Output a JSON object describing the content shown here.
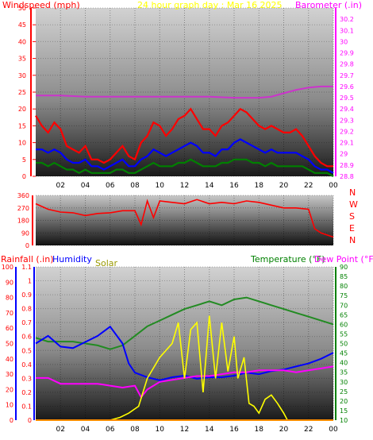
{
  "header": {
    "title": "24 hour graph day : Mar 16 2025",
    "left_label": "Windspeed (mph)",
    "right_label": "Barometer (.in)",
    "direction_label_letters": [
      "N",
      "W",
      "S",
      "E",
      "N"
    ]
  },
  "time_ticks": [
    "02",
    "04",
    "06",
    "08",
    "10",
    "12",
    "14",
    "16",
    "18",
    "20",
    "22",
    "00"
  ],
  "labels": {
    "rainfall": "Rainfall (.in)",
    "humidity": "Humidity",
    "solar": "Solar",
    "temperature": "Temperature (°F)",
    "dew_point": "Dew Point (°F)"
  },
  "colors": {
    "title": "#ffff00",
    "wind_label": "#ff0000",
    "baro_label": "#ff00ff",
    "wind_max": "#ff0000",
    "wind_avg": "#0000ff",
    "wind_min": "#008000",
    "barometer": "#cc33cc",
    "direction": "#ff0000",
    "rain_axis": "#0000ff",
    "humidity_axis": "#ff0000",
    "humidity_line": "#0000ff",
    "solar": "#ffff00",
    "solar_label": "#999900",
    "temperature": "#228b22",
    "temperature_label": "#008000",
    "dewpoint": "#ff00ff",
    "rain": "#ff8c00",
    "temp_axis": "#008000"
  },
  "chart_data": [
    {
      "type": "line",
      "title": "24 hour graph day : Mar 16 2025",
      "xlabel": "",
      "ylabel": "Windspeed (mph)",
      "y2label": "Barometer (.in)",
      "x_ticks": [
        "02",
        "04",
        "06",
        "08",
        "10",
        "12",
        "14",
        "16",
        "18",
        "20",
        "22",
        "00"
      ],
      "x_range_hours": [
        0,
        24
      ],
      "ylim": [
        0,
        50
      ],
      "y_ticks": [
        0,
        5,
        10,
        15,
        20,
        25,
        30,
        35,
        40,
        45,
        50
      ],
      "y2lim": [
        28.8,
        30.3
      ],
      "y2_ticks": [
        28.8,
        28.9,
        29.0,
        29.1,
        29.2,
        29.3,
        29.4,
        29.5,
        29.6,
        29.7,
        29.8,
        29.9,
        30.0,
        30.1,
        30.2
      ],
      "y2_tick_labels": [
        "28.8",
        "28.9",
        "29",
        "29.1",
        "29.2",
        "29.3",
        "29.4",
        "29.5",
        "29.6",
        "29.7",
        "29.8",
        "29.9",
        "30",
        "30.1",
        "30.2"
      ],
      "series": [
        {
          "name": "Windspeed max",
          "axis": "left",
          "x": [
            0,
            0.5,
            1,
            1.5,
            2,
            2.5,
            3,
            3.5,
            4,
            4.5,
            5,
            5.5,
            6,
            6.5,
            7,
            7.5,
            8,
            8.5,
            9,
            9.5,
            10,
            10.5,
            11,
            11.5,
            12,
            12.5,
            13,
            13.5,
            14,
            14.5,
            15,
            15.5,
            16,
            16.5,
            17,
            17.5,
            18,
            18.5,
            19,
            19.5,
            20,
            20.5,
            21,
            21.5,
            22,
            22.5,
            23,
            23.5,
            24
          ],
          "values": [
            18,
            15,
            13,
            16,
            14,
            9,
            8,
            7,
            9,
            5,
            5,
            4,
            5,
            7,
            9,
            6,
            5,
            10,
            12,
            16,
            15,
            12,
            14,
            17,
            18,
            20,
            17,
            14,
            14,
            12,
            15,
            16,
            18,
            20,
            19,
            17,
            15,
            14,
            15,
            14,
            13,
            13,
            14,
            12,
            9,
            6,
            4,
            3,
            3
          ]
        },
        {
          "name": "Windspeed avg",
          "axis": "left",
          "x": [
            0,
            0.5,
            1,
            1.5,
            2,
            2.5,
            3,
            3.5,
            4,
            4.5,
            5,
            5.5,
            6,
            6.5,
            7,
            7.5,
            8,
            8.5,
            9,
            9.5,
            10,
            10.5,
            11,
            11.5,
            12,
            12.5,
            13,
            13.5,
            14,
            14.5,
            15,
            15.5,
            16,
            16.5,
            17,
            17.5,
            18,
            18.5,
            19,
            19.5,
            20,
            20.5,
            21,
            21.5,
            22,
            22.5,
            23,
            23.5,
            24
          ],
          "values": [
            8,
            8,
            7,
            8,
            7,
            5,
            4,
            4,
            5,
            3,
            3,
            2,
            3,
            4,
            5,
            3,
            3,
            5,
            6,
            8,
            7,
            6,
            7,
            8,
            9,
            10,
            9,
            7,
            7,
            6,
            8,
            8,
            10,
            11,
            10,
            9,
            8,
            7,
            8,
            7,
            7,
            7,
            7,
            6,
            5,
            3,
            2,
            2,
            1
          ]
        },
        {
          "name": "Windspeed min",
          "axis": "left",
          "x": [
            0,
            0.5,
            1,
            1.5,
            2,
            2.5,
            3,
            3.5,
            4,
            4.5,
            5,
            5.5,
            6,
            6.5,
            7,
            7.5,
            8,
            8.5,
            9,
            9.5,
            10,
            10.5,
            11,
            11.5,
            12,
            12.5,
            13,
            13.5,
            14,
            14.5,
            15,
            15.5,
            16,
            16.5,
            17,
            17.5,
            18,
            18.5,
            19,
            19.5,
            20,
            20.5,
            21,
            21.5,
            22,
            22.5,
            23,
            23.5,
            24
          ],
          "values": [
            4,
            4,
            3,
            4,
            3,
            2,
            2,
            1,
            2,
            1,
            1,
            1,
            1,
            2,
            2,
            1,
            1,
            2,
            3,
            4,
            3,
            3,
            3,
            4,
            4,
            5,
            4,
            3,
            3,
            3,
            4,
            4,
            5,
            5,
            5,
            4,
            4,
            3,
            4,
            3,
            3,
            3,
            3,
            3,
            2,
            1,
            1,
            1,
            0
          ]
        },
        {
          "name": "Barometer",
          "axis": "right",
          "x": [
            0,
            2,
            4,
            6,
            8,
            10,
            12,
            14,
            16,
            18,
            19,
            20,
            21,
            22,
            23,
            24
          ],
          "values": [
            29.52,
            29.52,
            29.51,
            29.51,
            29.51,
            29.51,
            29.51,
            29.51,
            29.5,
            29.5,
            29.51,
            29.54,
            29.57,
            29.59,
            29.6,
            29.6
          ]
        }
      ]
    },
    {
      "type": "line",
      "ylabel_letters": [
        "N",
        "W",
        "S",
        "E",
        "N"
      ],
      "ylim": [
        0,
        360
      ],
      "y_ticks": [
        0,
        90,
        180,
        270,
        360
      ],
      "y_tick_labels": [
        "0",
        "90",
        "180",
        "270",
        "360"
      ],
      "x_range_hours": [
        0,
        24
      ],
      "series": [
        {
          "name": "Wind direction",
          "x": [
            0,
            1,
            2,
            3,
            4,
            5,
            6,
            7,
            8,
            8.5,
            9,
            9.5,
            10,
            11,
            12,
            13,
            14,
            15,
            16,
            17,
            18,
            19,
            20,
            21,
            22,
            22.5,
            23,
            24
          ],
          "values": [
            300,
            260,
            240,
            235,
            215,
            230,
            235,
            250,
            250,
            150,
            320,
            200,
            320,
            310,
            300,
            330,
            300,
            310,
            300,
            320,
            310,
            290,
            270,
            270,
            260,
            120,
            90,
            60
          ]
        }
      ]
    },
    {
      "type": "line",
      "x_range_hours": [
        0,
        24
      ],
      "left_axis": {
        "label": "Rainfall (.in)",
        "ylim": [
          0,
          1.1
        ],
        "y_ticks": [
          0,
          0.1,
          0.2,
          0.3,
          0.4,
          0.5,
          0.6,
          0.7,
          0.8,
          0.9,
          1.0,
          1.1
        ],
        "y_tick_labels": [
          "0",
          "0.1",
          "0.2",
          "0.3",
          "0.4",
          "0.5",
          "0.6",
          "0.7",
          "0.8",
          "0.9",
          "1",
          "1.1"
        ]
      },
      "humidity_axis": {
        "label": "Humidity",
        "ylim": [
          0,
          100
        ],
        "y_ticks": [
          0,
          10,
          20,
          30,
          40,
          50,
          60,
          70,
          80,
          90,
          100
        ],
        "y_tick_labels": [
          "0",
          "10",
          "20",
          "30",
          "40",
          "50",
          "60",
          "70",
          "80",
          "90",
          "100"
        ]
      },
      "right_axis": {
        "label": "Temperature (°F)",
        "ylim": [
          10,
          90
        ],
        "y_ticks": [
          10,
          15,
          20,
          25,
          30,
          35,
          40,
          45,
          50,
          55,
          60,
          65,
          70,
          75,
          80,
          85,
          90
        ],
        "y_tick_labels": [
          "10",
          "15",
          "20",
          "25",
          "30",
          "35",
          "40",
          "45",
          "50",
          "55",
          "60",
          "65",
          "70",
          "75",
          "80",
          "85",
          "90"
        ]
      },
      "series": [
        {
          "name": "Temperature",
          "axis": "right",
          "x": [
            0,
            1,
            2,
            3,
            4,
            5,
            6,
            7,
            8,
            9,
            10,
            11,
            12,
            13,
            14,
            15,
            16,
            17,
            18,
            19,
            20,
            21,
            22,
            23,
            24
          ],
          "values": [
            53,
            51,
            51,
            51,
            50,
            49,
            47,
            49,
            54,
            59,
            62,
            65,
            68,
            70,
            72,
            70,
            73,
            74,
            72,
            70,
            68,
            66,
            64,
            62,
            60
          ]
        },
        {
          "name": "Humidity",
          "axis": "humidity",
          "x": [
            0,
            1,
            2,
            3,
            4,
            5,
            6,
            7,
            7.5,
            8,
            9,
            10,
            11,
            12,
            13,
            14,
            15,
            16,
            17,
            18,
            19,
            20,
            21,
            22,
            23,
            24
          ],
          "values": [
            50,
            55,
            48,
            47,
            51,
            55,
            61,
            50,
            37,
            31,
            28,
            26,
            28,
            29,
            27,
            28,
            28,
            29,
            31,
            30,
            32,
            33,
            35,
            37,
            40,
            44
          ]
        },
        {
          "name": "Dew Point",
          "axis": "right",
          "x": [
            0,
            1,
            2,
            3,
            4,
            5,
            6,
            7,
            8,
            8.5,
            9,
            10,
            11,
            12,
            13,
            14,
            15,
            16,
            17,
            18,
            19,
            20,
            21,
            22,
            23,
            24
          ],
          "values": [
            32,
            32,
            29,
            29,
            29,
            29,
            28,
            27,
            28,
            22,
            26,
            30,
            31,
            32,
            33,
            33,
            34,
            35,
            35,
            36,
            36,
            36,
            35,
            36,
            37,
            38
          ]
        },
        {
          "name": "Solar",
          "axis": "rain",
          "x": [
            0,
            6,
            6.8,
            7.5,
            8.3,
            9,
            10,
            11,
            11.5,
            12,
            12.5,
            13,
            13.5,
            14,
            14.5,
            15,
            15.5,
            16,
            16.3,
            16.8,
            17.2,
            17.6,
            18,
            18.5,
            19,
            19.5,
            20,
            20.3,
            24
          ],
          "values": [
            0,
            0,
            0.02,
            0.05,
            0.1,
            0.3,
            0.45,
            0.55,
            0.7,
            0.3,
            0.65,
            0.7,
            0.2,
            0.75,
            0.3,
            0.7,
            0.35,
            0.6,
            0.3,
            0.45,
            0.12,
            0.1,
            0.05,
            0.15,
            0.18,
            0.12,
            0.05,
            0.0,
            0
          ]
        },
        {
          "name": "Rainfall",
          "axis": "rain",
          "x": [
            0,
            24
          ],
          "values": [
            0,
            0
          ]
        }
      ]
    }
  ]
}
